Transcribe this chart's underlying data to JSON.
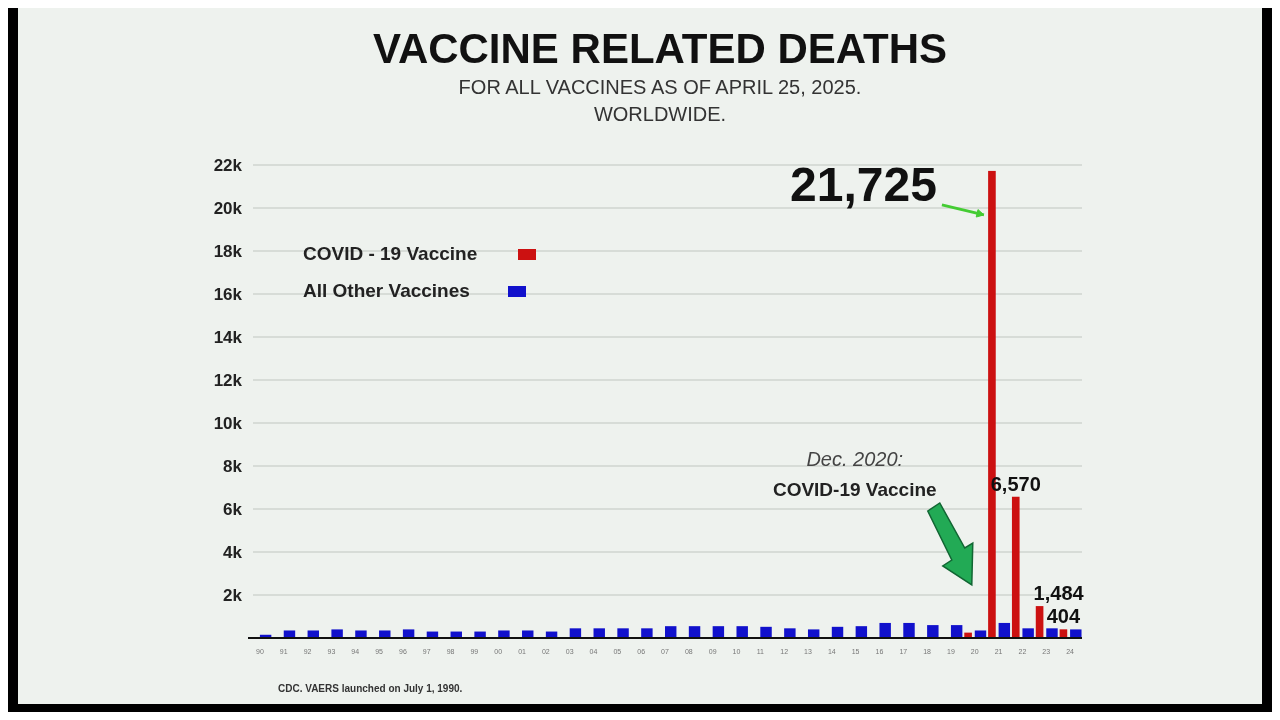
{
  "chart_data": {
    "type": "bar",
    "title": "VACCINE RELATED DEATHS",
    "subtitle": "FOR ALL VACCINES AS OF APRIL 25, 2025.\nWORLDWIDE.",
    "categories": [
      "90",
      "91",
      "92",
      "93",
      "94",
      "95",
      "96",
      "97",
      "98",
      "99",
      "00",
      "01",
      "02",
      "03",
      "04",
      "05",
      "06",
      "07",
      "08",
      "09",
      "10",
      "11",
      "12",
      "13",
      "14",
      "15",
      "16",
      "17",
      "18",
      "19",
      "20",
      "21",
      "22",
      "23",
      "24"
    ],
    "series": [
      {
        "name": "COVID - 19 Vaccine",
        "color": "#cc1111",
        "values": [
          null,
          null,
          null,
          null,
          null,
          null,
          null,
          null,
          null,
          null,
          null,
          null,
          null,
          null,
          null,
          null,
          null,
          null,
          null,
          null,
          null,
          null,
          null,
          null,
          null,
          null,
          null,
          null,
          null,
          null,
          250,
          21725,
          6570,
          1484,
          404
        ],
        "value_labels": [
          null,
          null,
          null,
          null,
          null,
          null,
          null,
          null,
          null,
          null,
          null,
          null,
          null,
          null,
          null,
          null,
          null,
          null,
          null,
          null,
          null,
          null,
          null,
          null,
          null,
          null,
          null,
          null,
          null,
          null,
          null,
          "21,725",
          "6,570",
          "1,484",
          "404"
        ]
      },
      {
        "name": "All Other Vaccines",
        "color": "#1111cc",
        "values": [
          150,
          350,
          350,
          400,
          350,
          350,
          400,
          300,
          300,
          300,
          350,
          350,
          300,
          450,
          450,
          450,
          450,
          550,
          550,
          550,
          550,
          520,
          450,
          400,
          520,
          550,
          700,
          700,
          600,
          600,
          350,
          700,
          450,
          450,
          400
        ]
      }
    ],
    "ylim": [
      0,
      22000
    ],
    "yticks": [
      {
        "value": 2000,
        "label": "2k"
      },
      {
        "value": 4000,
        "label": "4k"
      },
      {
        "value": 6000,
        "label": "6k"
      },
      {
        "value": 8000,
        "label": "8k"
      },
      {
        "value": 10000,
        "label": "10k"
      },
      {
        "value": 12000,
        "label": "12k"
      },
      {
        "value": 14000,
        "label": "14k"
      },
      {
        "value": 16000,
        "label": "16k"
      },
      {
        "value": 18000,
        "label": "18k"
      },
      {
        "value": 20000,
        "label": "20k"
      },
      {
        "value": 22000,
        "label": "22k"
      }
    ],
    "grid": "y",
    "legend": "top left",
    "annotations": [
      "Dec. 2020:\nCOVID-19 Vaccine",
      "CDC. VAERS launched on July 1, 1990."
    ]
  }
}
